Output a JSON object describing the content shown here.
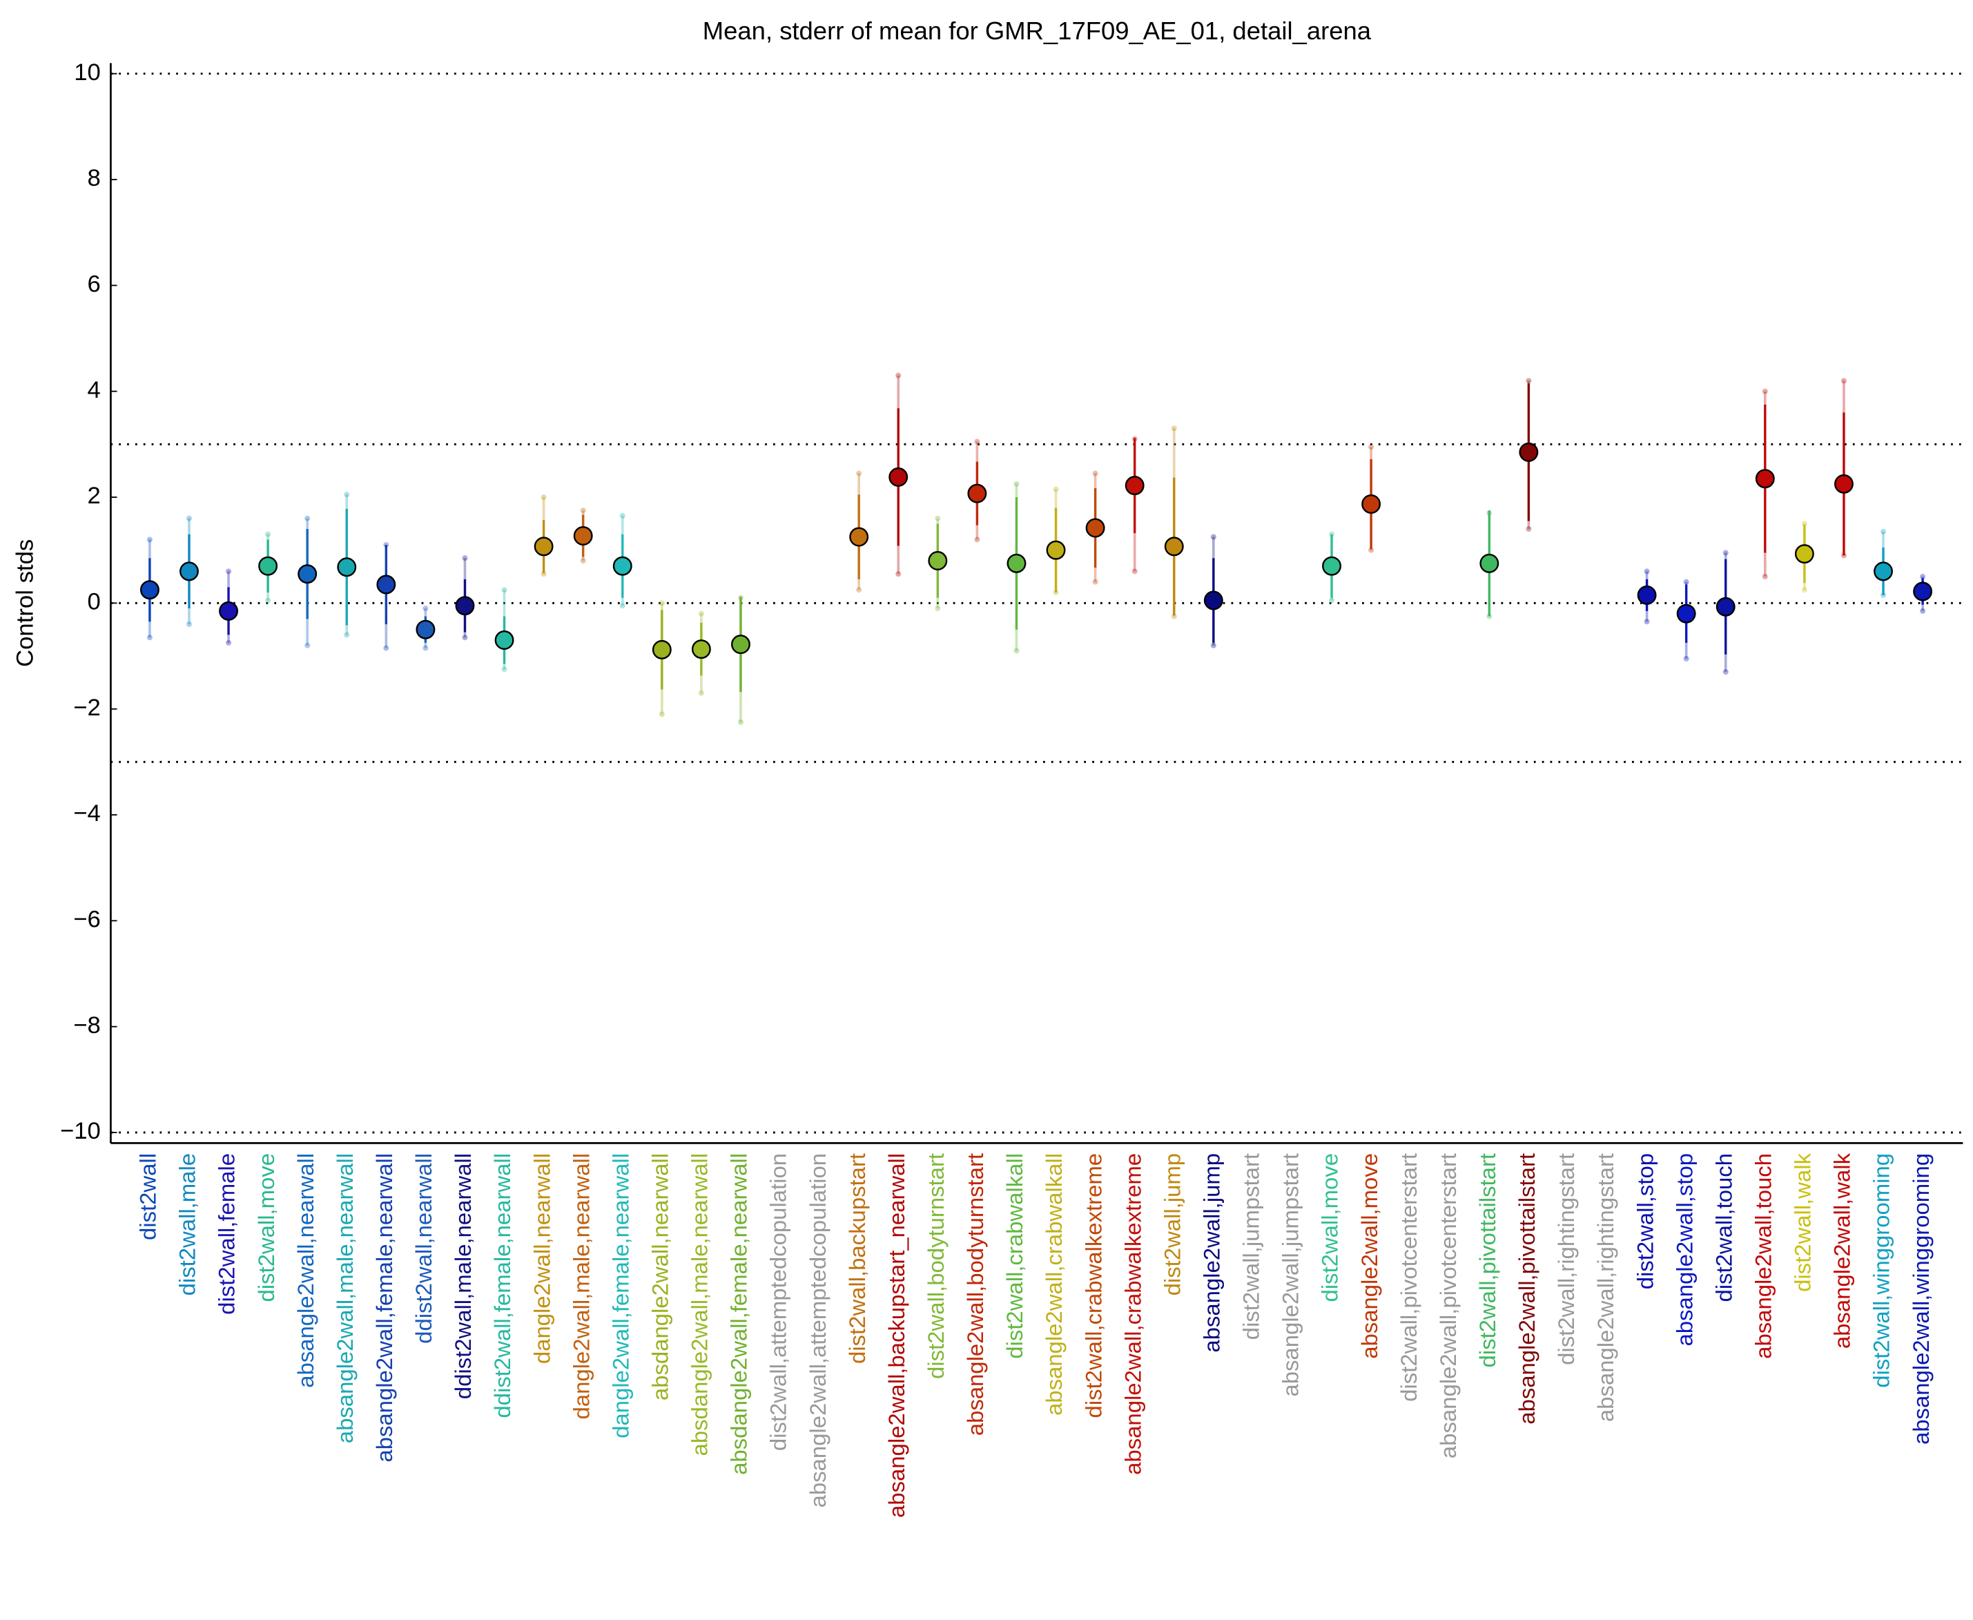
{
  "chart_data": {
    "type": "errorbar",
    "title": "Mean, stderr of mean for GMR_17F09_AE_01, detail_arena",
    "y_label": "Control stds",
    "categories": [
      "dist2wall",
      "dist2wall,male",
      "dist2wall,female",
      "dist2wall,move",
      "absangle2wall,nearwall",
      "absangle2wall,male,nearwall",
      "absangle2wall,female,nearwall",
      "ddist2wall,nearwall",
      "ddist2wall,male,nearwall",
      "ddist2wall,female,nearwall",
      "dangle2wall,nearwall",
      "dangle2wall,male,nearwall",
      "dangle2wall,female,nearwall",
      "absdangle2wall,nearwall",
      "absdangle2wall,male,nearwall",
      "absdangle2wall,female,nearwall",
      "dist2wall,attemptedcopulation",
      "absangle2wall,attemptedcopulation",
      "dist2wall,backupstart",
      "absangle2wall,backupstart_nearwall",
      "dist2wall,bodyturnstart",
      "absangle2wall,bodyturnstart",
      "dist2wall,crabwalkall",
      "absangle2wall,crabwalkall",
      "dist2wall,crabwalkextreme",
      "absangle2wall,crabwalkextreme",
      "dist2wall,jump",
      "absangle2wall,jump",
      "dist2wall,jumpstart",
      "absangle2wall,jumpstart",
      "dist2wall,move",
      "absangle2wall,move",
      "dist2wall,pivotcenterstart",
      "absangle2wall,pivotcenterstart",
      "dist2wall,pivottailstart",
      "absangle2wall,pivottailstart",
      "dist2wall,rightingstart",
      "absangle2wall,rightingstart",
      "dist2wall,stop",
      "absangle2wall,stop",
      "dist2wall,touch",
      "absangle2wall,touch",
      "dist2wall,walk",
      "absangle2wall,walk",
      "dist2wall,winggrooming",
      "absangle2wall,winggrooming"
    ],
    "values": [
      0.25,
      0.6,
      -0.15,
      0.7,
      0.55,
      0.68,
      0.35,
      -0.5,
      -0.05,
      -0.7,
      1.07,
      1.27,
      0.7,
      -0.88,
      -0.87,
      -0.78,
      null,
      null,
      1.25,
      2.38,
      0.8,
      2.07,
      0.75,
      1.0,
      1.42,
      2.22,
      1.07,
      0.05,
      null,
      null,
      0.7,
      1.87,
      null,
      null,
      0.75,
      2.85,
      null,
      null,
      0.15,
      -0.2,
      -0.07,
      2.35,
      0.93,
      2.25,
      0.6,
      0.22
    ],
    "errors": [
      0.6,
      0.7,
      0.45,
      0.5,
      0.85,
      1.1,
      0.75,
      0.25,
      0.5,
      0.45,
      0.5,
      0.4,
      0.6,
      0.75,
      0.5,
      0.9,
      null,
      null,
      0.8,
      1.3,
      0.7,
      0.6,
      1.25,
      0.8,
      0.75,
      0.9,
      1.3,
      0.8,
      null,
      null,
      0.6,
      0.85,
      null,
      null,
      1.0,
      1.3,
      null,
      null,
      0.3,
      0.55,
      0.9,
      1.4,
      0.55,
      1.35,
      0.45,
      0.25
    ],
    "range_low": [
      -0.65,
      -0.4,
      -0.75,
      0.05,
      -0.8,
      -0.6,
      -0.85,
      -0.85,
      -0.65,
      -1.25,
      0.55,
      0.8,
      -0.05,
      -2.1,
      -1.7,
      -2.25,
      null,
      null,
      0.25,
      0.55,
      -0.1,
      1.2,
      -0.9,
      0.2,
      0.4,
      0.6,
      -0.25,
      -0.8,
      null,
      null,
      0.05,
      1.0,
      null,
      null,
      -0.25,
      1.4,
      null,
      null,
      -0.35,
      -1.05,
      -1.3,
      0.5,
      0.25,
      0.9,
      0.15,
      -0.15
    ],
    "range_high": [
      1.2,
      1.6,
      0.6,
      1.3,
      1.6,
      2.05,
      1.1,
      -0.1,
      0.85,
      0.25,
      2.0,
      1.75,
      1.65,
      0,
      -0.2,
      0.1,
      null,
      null,
      2.45,
      4.3,
      1.6,
      3.05,
      2.25,
      2.15,
      2.45,
      3.1,
      3.3,
      1.25,
      null,
      null,
      1.3,
      2.95,
      null,
      null,
      1.7,
      4.2,
      null,
      null,
      0.6,
      0.4,
      0.95,
      4.0,
      1.5,
      4.2,
      1.35,
      0.5
    ],
    "colors": [
      "#0b45b8",
      "#1188c0",
      "#1a12b0",
      "#2ab890",
      "#1366c0",
      "#1aa8b0",
      "#1440b0",
      "#1c5ab8",
      "#101080",
      "#26b8a0",
      "#c09010",
      "#c06010",
      "#20b8b8",
      "#9cb020",
      "#98b828",
      "#70b030",
      "#999999",
      "#999999",
      "#c07010",
      "#b00808",
      "#80b838",
      "#c02808",
      "#60b840",
      "#c0b018",
      "#c04808",
      "#c01008",
      "#c08810",
      "#0a0a80",
      "#999999",
      "#999999",
      "#30c090",
      "#c03808",
      "#999999",
      "#999999",
      "#40b860",
      "#800808",
      "#999999",
      "#999999",
      "#0a10b0",
      "#0a18c0",
      "#0a14a0",
      "#c00808",
      "#c8c010",
      "#c00808",
      "#10a0c0",
      "#0a18b0"
    ],
    "ylim": [
      -10.2,
      10.2
    ],
    "yticks": [
      10,
      8,
      6,
      4,
      2,
      0,
      {
        "value": -2,
        "label": "−2"
      },
      {
        "value": -4,
        "label": "−4"
      },
      {
        "value": -6,
        "label": "−6"
      },
      {
        "value": -8,
        "label": "−8"
      },
      {
        "value": -10,
        "label": "−10"
      }
    ],
    "reference_lines": [
      10,
      3,
      0,
      -3,
      -10
    ]
  }
}
